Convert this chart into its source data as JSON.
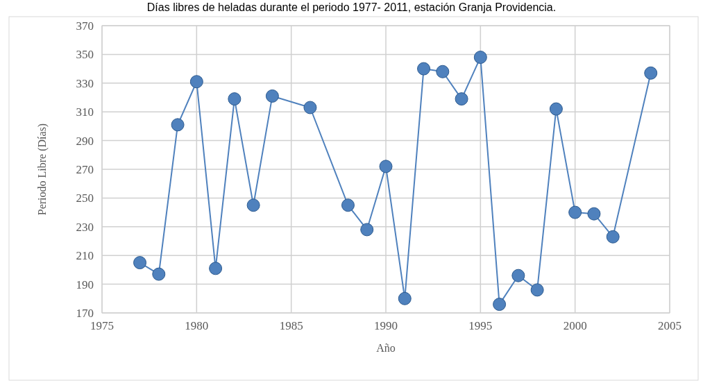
{
  "chart_data": {
    "type": "line",
    "title": "Días libres de heladas durante el periodo 1977- 2011, estación Granja Providencia.",
    "xlabel": "Año",
    "ylabel": "Periodo Libre (Días)",
    "x": [
      1977,
      1978,
      1979,
      1980,
      1981,
      1982,
      1983,
      1984,
      1986,
      1988,
      1989,
      1990,
      1991,
      1992,
      1993,
      1994,
      1995,
      1996,
      1997,
      1998,
      1999,
      2000,
      2001,
      2002,
      2004
    ],
    "series": [
      {
        "color": "#4f81bd",
        "values": [
          205,
          197,
          301,
          331,
          201,
          319,
          245,
          321,
          313,
          245,
          228,
          272,
          180,
          340,
          338,
          319,
          348,
          176,
          196,
          186,
          312,
          240,
          239,
          223,
          337
        ]
      }
    ],
    "xlim": [
      1975,
      2005
    ],
    "xticks": [
      1975,
      1980,
      1985,
      1990,
      1995,
      2000,
      2005
    ],
    "ylim": [
      170,
      370
    ],
    "yticks": [
      170,
      190,
      210,
      230,
      250,
      270,
      290,
      310,
      330,
      350,
      370
    ],
    "grid": true,
    "marker": "circle",
    "line_style": "solid"
  }
}
